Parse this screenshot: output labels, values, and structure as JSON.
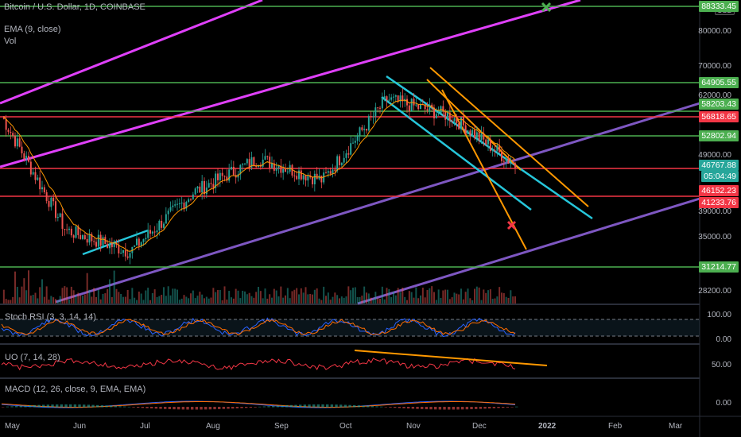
{
  "header": {
    "symbol_line": "Bitcoin / U.S. Dollar, 1D, COINBASE",
    "ema_line": "EMA (9, close)",
    "vol_line": "Vol"
  },
  "currency_badge": "USD",
  "indicators": {
    "stoch": "Stoch RSI (3, 3, 14, 14)",
    "uo": "UO (7, 14, 28)",
    "macd": "MACD (12, 26, close, 9, EMA, EMA)"
  },
  "colors": {
    "green_line": "#4caf50",
    "red_line": "#f23645",
    "magenta_channel": "#e040fb",
    "purple_channel": "#7e57c2",
    "cyan_channel": "#26c6da",
    "orange_line": "#ff9800",
    "up_candle": "#26a69a",
    "down_candle": "#ef5350",
    "current_price_tag": "#26a69a"
  },
  "chart_data": {
    "type": "candlestick",
    "title": "Bitcoin / U.S. Dollar, 1D, COINBASE",
    "y_scale": "log",
    "x_tick_labels": [
      "May",
      "Jun",
      "Jul",
      "Aug",
      "Sep",
      "Oct",
      "Nov",
      "Dec",
      "2022",
      "Feb",
      "Mar"
    ],
    "y_tick_labels": [
      "80000.00",
      "70000.00",
      "62000.00",
      "49000.00",
      "39000.00",
      "35000.00",
      "28200.00"
    ],
    "price_levels": [
      {
        "label": "88333.45",
        "color": "green"
      },
      {
        "label": "64905.55",
        "color": "green"
      },
      {
        "label": "58203.43",
        "color": "green"
      },
      {
        "label": "56818.65",
        "color": "red"
      },
      {
        "label": "52802.94",
        "color": "green"
      },
      {
        "label": "46767.88",
        "color": "teal",
        "note": "current price"
      },
      {
        "label": "46152.23",
        "color": "red"
      },
      {
        "label": "41233.76",
        "color": "red"
      },
      {
        "label": "31214.77",
        "color": "green"
      }
    ],
    "countdown": "05:04:49",
    "stoch_axis": [
      "100.00",
      "0.00"
    ],
    "uo_axis": [
      "50.00"
    ],
    "macd_axis": [
      "0.00"
    ],
    "approx_closes_monthly": [
      {
        "month": "May",
        "value": 57000
      },
      {
        "month": "Jun",
        "value": 36000
      },
      {
        "month": "Jul",
        "value": 33000
      },
      {
        "month": "Aug",
        "value": 42000
      },
      {
        "month": "Sep",
        "value": 48000
      },
      {
        "month": "Oct",
        "value": 44000
      },
      {
        "month": "Nov",
        "value": 61000
      },
      {
        "month": "Dec",
        "value": 57000
      },
      {
        "month": "Dec-end",
        "value": 46767.88
      }
    ]
  }
}
